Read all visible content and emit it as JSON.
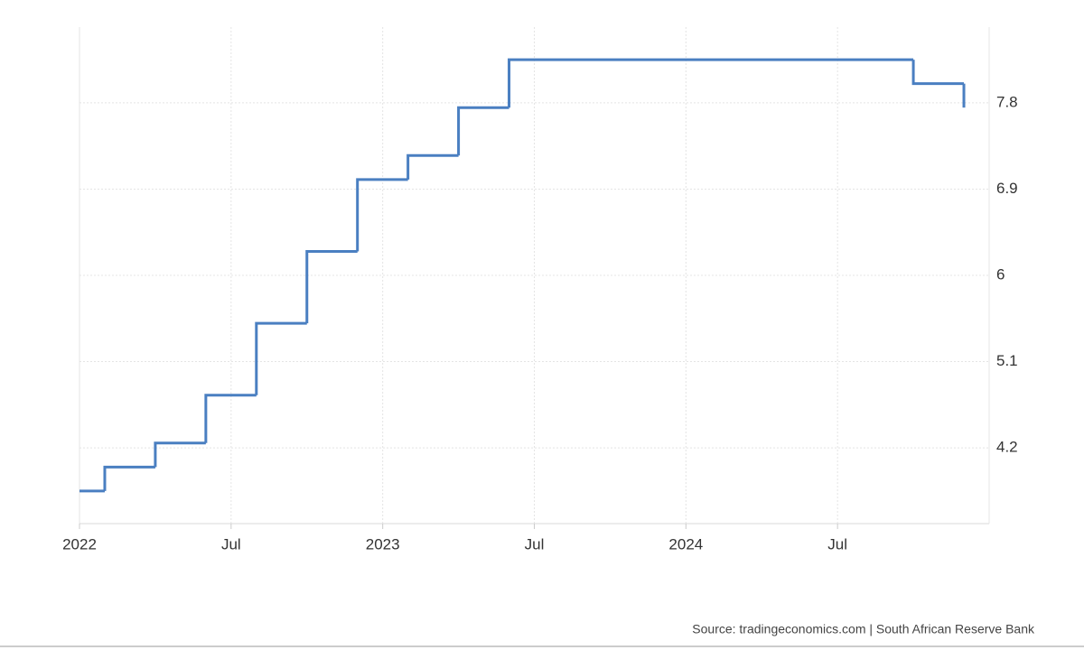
{
  "chart_data": {
    "type": "line",
    "step": true,
    "grid": true,
    "x": [
      "2022-01",
      "2022-02",
      "2022-04",
      "2022-06",
      "2022-08",
      "2022-10",
      "2022-12",
      "2023-02",
      "2023-04",
      "2023-06",
      "2024-10",
      "2024-12"
    ],
    "series": [
      {
        "color": "#4a7fc1",
        "values": [
          3.75,
          4.0,
          4.25,
          4.75,
          5.5,
          6.25,
          7.0,
          7.25,
          7.75,
          8.25,
          8.0,
          7.75
        ]
      }
    ],
    "xlim": [
      "2022-01",
      "2025-01"
    ],
    "xticks": [
      {
        "value": "2022-01",
        "label": "2022"
      },
      {
        "value": "2022-07",
        "label": "Jul"
      },
      {
        "value": "2023-01",
        "label": "2023"
      },
      {
        "value": "2023-07",
        "label": "Jul"
      },
      {
        "value": "2024-01",
        "label": "2024"
      },
      {
        "value": "2024-07",
        "label": "Jul"
      }
    ],
    "ylim": [
      3.41,
      8.59
    ],
    "yticks": [
      4.2,
      5.1,
      6.0,
      6.9,
      7.8
    ],
    "source": "Source: tradingeconomics.com | South African Reserve Bank"
  }
}
